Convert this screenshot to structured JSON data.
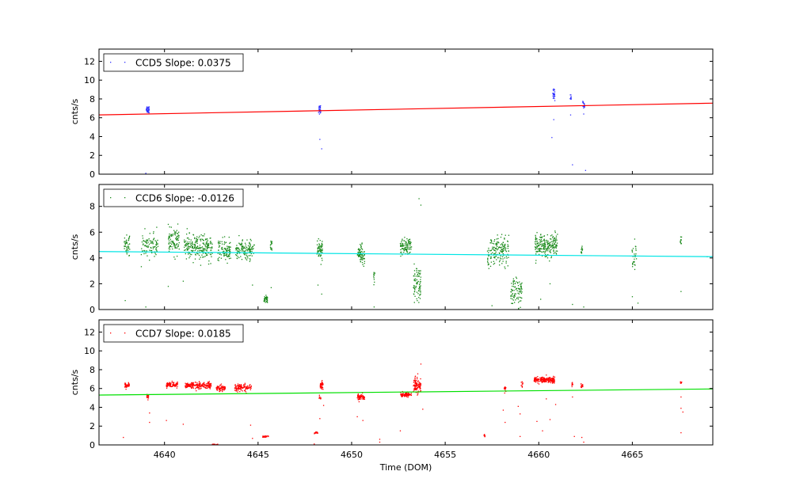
{
  "chart_data": [
    {
      "type": "scatter",
      "xlabel": "",
      "ylabel": "cnts/s",
      "xlim": [
        4636.5,
        4669.3
      ],
      "ylim": [
        0,
        13.3
      ],
      "yticks": [
        0,
        2,
        4,
        6,
        8,
        10,
        12
      ],
      "show_x_tick_labels": false,
      "legend": {
        "text": "CCD5 Slope: 0.0375",
        "placement": "top-left"
      },
      "point_color": "#3333ff",
      "fit_color": "#ff0000",
      "fit_line": {
        "x": [
          4636.5,
          4669.3
        ],
        "y": [
          6.3,
          7.55
        ]
      },
      "series": [
        {
          "name": "CCD5 Slope: 0.0375",
          "clusters": [
            {
              "x": 4639.1,
              "x_spread": 0.08,
              "y_center": 6.9,
              "y_spread": 0.35,
              "n": 40
            },
            {
              "x": 4648.3,
              "x_spread": 0.07,
              "y_center": 6.9,
              "y_spread": 0.35,
              "n": 30
            },
            {
              "x": 4660.8,
              "x_spread": 0.06,
              "y_center": 8.5,
              "y_spread": 0.5,
              "n": 25
            },
            {
              "x": 4661.7,
              "x_spread": 0.03,
              "y_center": 8.2,
              "y_spread": 0.3,
              "n": 10
            },
            {
              "x": 4662.4,
              "x_spread": 0.05,
              "y_center": 7.3,
              "y_spread": 0.35,
              "n": 18
            }
          ],
          "points": [
            {
              "x": 4639.0,
              "y": 0.1
            },
            {
              "x": 4648.3,
              "y": 3.7
            },
            {
              "x": 4648.4,
              "y": 2.7
            },
            {
              "x": 4660.7,
              "y": 3.9
            },
            {
              "x": 4660.8,
              "y": 5.8
            },
            {
              "x": 4661.7,
              "y": 6.3
            },
            {
              "x": 4661.8,
              "y": 1.0
            },
            {
              "x": 4662.4,
              "y": 6.4
            },
            {
              "x": 4662.5,
              "y": 0.4
            }
          ]
        }
      ]
    },
    {
      "type": "scatter",
      "xlabel": "",
      "ylabel": "cnts/s",
      "xlim": [
        4636.5,
        4669.3
      ],
      "ylim": [
        0,
        9.7
      ],
      "yticks": [
        0,
        2,
        4,
        6,
        8
      ],
      "show_x_tick_labels": false,
      "legend": {
        "text": "CCD6 Slope: -0.0126",
        "placement": "top-left"
      },
      "point_color": "#1a8a1a",
      "fit_color": "#00e5e5",
      "fit_line": {
        "x": [
          4636.5,
          4669.3
        ],
        "y": [
          4.5,
          4.1
        ]
      },
      "series": [
        {
          "name": "CCD6 Slope: -0.0126",
          "clusters": [
            {
              "x": 4638.0,
              "x_spread": 0.15,
              "y_center": 5.0,
              "y_spread": 0.6,
              "n": 45
            },
            {
              "x": 4639.2,
              "x_spread": 0.45,
              "y_center": 5.0,
              "y_spread": 0.8,
              "n": 90
            },
            {
              "x": 4640.5,
              "x_spread": 0.3,
              "y_center": 5.3,
              "y_spread": 0.8,
              "n": 90
            },
            {
              "x": 4641.8,
              "x_spread": 0.75,
              "y_center": 4.8,
              "y_spread": 0.8,
              "n": 220
            },
            {
              "x": 4643.2,
              "x_spread": 0.35,
              "y_center": 4.6,
              "y_spread": 0.7,
              "n": 90
            },
            {
              "x": 4644.3,
              "x_spread": 0.5,
              "y_center": 4.6,
              "y_spread": 0.6,
              "n": 130
            },
            {
              "x": 4645.4,
              "x_spread": 0.1,
              "y_center": 0.8,
              "y_spread": 0.2,
              "n": 40
            },
            {
              "x": 4645.7,
              "x_spread": 0.05,
              "y_center": 5.0,
              "y_spread": 0.5,
              "n": 15
            },
            {
              "x": 4648.3,
              "x_spread": 0.15,
              "y_center": 4.7,
              "y_spread": 0.7,
              "n": 60
            },
            {
              "x": 4650.5,
              "x_spread": 0.2,
              "y_center": 4.3,
              "y_spread": 0.6,
              "n": 70
            },
            {
              "x": 4651.2,
              "x_spread": 0.04,
              "y_center": 2.5,
              "y_spread": 0.5,
              "n": 10
            },
            {
              "x": 4652.9,
              "x_spread": 0.3,
              "y_center": 4.8,
              "y_spread": 0.6,
              "n": 100
            },
            {
              "x": 4653.5,
              "x_spread": 0.2,
              "y_center": 2.0,
              "y_spread": 1.2,
              "n": 80
            },
            {
              "x": 4657.3,
              "x_spread": 0.05,
              "y_center": 3.8,
              "y_spread": 0.7,
              "n": 20
            },
            {
              "x": 4657.9,
              "x_spread": 0.5,
              "y_center": 4.6,
              "y_spread": 0.9,
              "n": 150
            },
            {
              "x": 4658.8,
              "x_spread": 0.3,
              "y_center": 1.3,
              "y_spread": 0.9,
              "n": 90
            },
            {
              "x": 4660.4,
              "x_spread": 0.6,
              "y_center": 5.0,
              "y_spread": 0.7,
              "n": 220
            },
            {
              "x": 4662.3,
              "x_spread": 0.04,
              "y_center": 4.7,
              "y_spread": 0.3,
              "n": 12
            },
            {
              "x": 4665.1,
              "x_spread": 0.12,
              "y_center": 4.0,
              "y_spread": 0.9,
              "n": 30
            },
            {
              "x": 4667.6,
              "x_spread": 0.04,
              "y_center": 5.3,
              "y_spread": 0.5,
              "n": 10
            }
          ],
          "points": [
            {
              "x": 4637.9,
              "y": 0.7
            },
            {
              "x": 4639.0,
              "y": 0.2
            },
            {
              "x": 4640.2,
              "y": 1.8
            },
            {
              "x": 4641.0,
              "y": 2.2
            },
            {
              "x": 4644.7,
              "y": 1.9
            },
            {
              "x": 4645.7,
              "y": 1.7
            },
            {
              "x": 4648.2,
              "y": 1.9
            },
            {
              "x": 4648.4,
              "y": 1.2
            },
            {
              "x": 4651.2,
              "y": 0.2
            },
            {
              "x": 4653.6,
              "y": 8.6
            },
            {
              "x": 4653.7,
              "y": 8.1
            },
            {
              "x": 4657.5,
              "y": 0.3
            },
            {
              "x": 4660.1,
              "y": 0.8
            },
            {
              "x": 4660.6,
              "y": 2.0
            },
            {
              "x": 4661.8,
              "y": 0.4
            },
            {
              "x": 4662.4,
              "y": 0.2
            },
            {
              "x": 4665.0,
              "y": 1.0
            },
            {
              "x": 4665.3,
              "y": 0.5
            },
            {
              "x": 4667.6,
              "y": 1.4
            },
            {
              "x": 4669.0,
              "y": 4.1
            }
          ]
        }
      ]
    },
    {
      "type": "scatter",
      "xlabel": "Time (DOM)",
      "ylabel": "cnts/s",
      "xlim": [
        4636.5,
        4669.3
      ],
      "ylim": [
        0,
        13.3
      ],
      "yticks": [
        0,
        2,
        4,
        6,
        8,
        10,
        12
      ],
      "xticks": [
        4640,
        4645,
        4650,
        4655,
        4660,
        4665
      ],
      "show_x_tick_labels": true,
      "legend": {
        "text": "CCD7 Slope: 0.0185",
        "placement": "top-left"
      },
      "point_color": "#ff0000",
      "fit_color": "#00e000",
      "fit_line": {
        "x": [
          4636.5,
          4669.3
        ],
        "y": [
          5.3,
          5.95
        ]
      },
      "series": [
        {
          "name": "CCD7 Slope: 0.0185",
          "clusters": [
            {
              "x": 4638.0,
              "x_spread": 0.12,
              "y_center": 6.3,
              "y_spread": 0.25,
              "n": 40
            },
            {
              "x": 4639.1,
              "x_spread": 0.05,
              "y_center": 5.1,
              "y_spread": 0.25,
              "n": 15
            },
            {
              "x": 4640.4,
              "x_spread": 0.3,
              "y_center": 6.4,
              "y_spread": 0.25,
              "n": 90
            },
            {
              "x": 4641.8,
              "x_spread": 0.7,
              "y_center": 6.3,
              "y_spread": 0.3,
              "n": 200
            },
            {
              "x": 4643.0,
              "x_spread": 0.25,
              "y_center": 6.0,
              "y_spread": 0.25,
              "n": 70
            },
            {
              "x": 4642.7,
              "x_spread": 0.15,
              "y_center": 0.05,
              "y_spread": 0.04,
              "n": 30
            },
            {
              "x": 4644.2,
              "x_spread": 0.45,
              "y_center": 6.1,
              "y_spread": 0.3,
              "n": 120
            },
            {
              "x": 4645.4,
              "x_spread": 0.15,
              "y_center": 0.9,
              "y_spread": 0.07,
              "n": 30
            },
            {
              "x": 4648.1,
              "x_spread": 0.1,
              "y_center": 1.3,
              "y_spread": 0.1,
              "n": 20
            },
            {
              "x": 4648.4,
              "x_spread": 0.08,
              "y_center": 6.4,
              "y_spread": 0.3,
              "n": 40
            },
            {
              "x": 4648.3,
              "x_spread": 0.05,
              "y_center": 5.0,
              "y_spread": 0.2,
              "n": 10
            },
            {
              "x": 4650.5,
              "x_spread": 0.2,
              "y_center": 5.1,
              "y_spread": 0.25,
              "n": 60
            },
            {
              "x": 4652.9,
              "x_spread": 0.3,
              "y_center": 5.35,
              "y_spread": 0.2,
              "n": 90
            },
            {
              "x": 4653.5,
              "x_spread": 0.2,
              "y_center": 6.3,
              "y_spread": 0.8,
              "n": 100
            },
            {
              "x": 4657.1,
              "x_spread": 0.03,
              "y_center": 1.0,
              "y_spread": 0.1,
              "n": 8
            },
            {
              "x": 4658.2,
              "x_spread": 0.05,
              "y_center": 6.0,
              "y_spread": 0.3,
              "n": 15
            },
            {
              "x": 4659.1,
              "x_spread": 0.05,
              "y_center": 6.5,
              "y_spread": 0.2,
              "n": 10
            },
            {
              "x": 4660.3,
              "x_spread": 0.55,
              "y_center": 6.9,
              "y_spread": 0.25,
              "n": 200
            },
            {
              "x": 4661.8,
              "x_spread": 0.04,
              "y_center": 6.5,
              "y_spread": 0.2,
              "n": 10
            },
            {
              "x": 4662.3,
              "x_spread": 0.05,
              "y_center": 6.3,
              "y_spread": 0.2,
              "n": 12
            },
            {
              "x": 4667.6,
              "x_spread": 0.04,
              "y_center": 6.6,
              "y_spread": 0.2,
              "n": 10
            }
          ],
          "points": [
            {
              "x": 4637.8,
              "y": 0.8
            },
            {
              "x": 4639.2,
              "y": 3.4
            },
            {
              "x": 4639.2,
              "y": 2.4
            },
            {
              "x": 4640.1,
              "y": 2.6
            },
            {
              "x": 4641.0,
              "y": 2.2
            },
            {
              "x": 4644.6,
              "y": 2.1
            },
            {
              "x": 4644.7,
              "y": 0.7
            },
            {
              "x": 4648.0,
              "y": 0.1
            },
            {
              "x": 4648.3,
              "y": 2.8
            },
            {
              "x": 4648.5,
              "y": 4.2
            },
            {
              "x": 4650.3,
              "y": 3.0
            },
            {
              "x": 4650.6,
              "y": 2.6
            },
            {
              "x": 4651.5,
              "y": 0.6
            },
            {
              "x": 4651.5,
              "y": 0.3
            },
            {
              "x": 4652.6,
              "y": 1.5
            },
            {
              "x": 4653.7,
              "y": 8.6
            },
            {
              "x": 4653.8,
              "y": 3.8
            },
            {
              "x": 4658.1,
              "y": 3.7
            },
            {
              "x": 4658.2,
              "y": 2.4
            },
            {
              "x": 4658.9,
              "y": 4.1
            },
            {
              "x": 4659.0,
              "y": 3.3
            },
            {
              "x": 4659.0,
              "y": 0.9
            },
            {
              "x": 4659.9,
              "y": 2.5
            },
            {
              "x": 4660.2,
              "y": 1.5
            },
            {
              "x": 4660.4,
              "y": 4.9
            },
            {
              "x": 4660.6,
              "y": 2.7
            },
            {
              "x": 4660.9,
              "y": 4.3
            },
            {
              "x": 4661.8,
              "y": 5.1
            },
            {
              "x": 4661.9,
              "y": 0.9
            },
            {
              "x": 4662.3,
              "y": 0.8
            },
            {
              "x": 4662.4,
              "y": 0.3
            },
            {
              "x": 4667.6,
              "y": 5.1
            },
            {
              "x": 4667.6,
              "y": 3.9
            },
            {
              "x": 4667.7,
              "y": 3.5
            },
            {
              "x": 4667.6,
              "y": 1.3
            },
            {
              "x": 4669.1,
              "y": 5.95
            }
          ]
        }
      ]
    }
  ]
}
